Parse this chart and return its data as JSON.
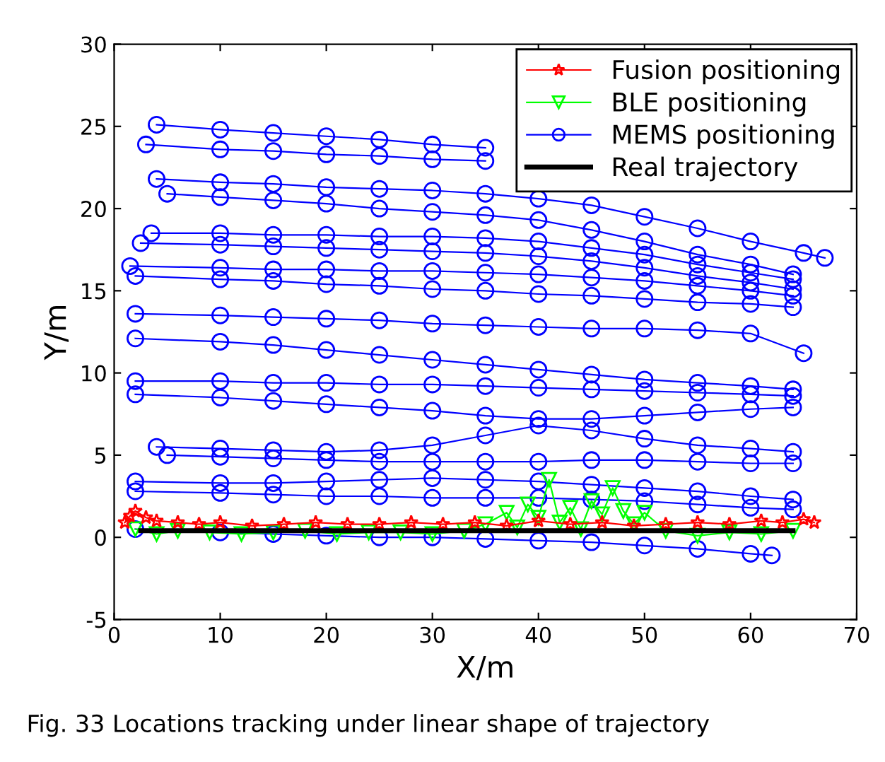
{
  "chart_data": {
    "type": "line",
    "xlabel": "X/m",
    "ylabel": "Y/m",
    "xlim": [
      0,
      70
    ],
    "xticks": [
      0,
      10,
      20,
      30,
      40,
      50,
      60,
      70
    ],
    "ylim": [
      -5,
      30
    ],
    "yticks": [
      -5,
      0,
      5,
      10,
      15,
      20,
      25,
      30
    ],
    "grid": false,
    "legend": "top right",
    "annotations": [
      "Fig. 33 Locations tracking under linear shape of trajectory"
    ],
    "series": [
      {
        "name": "MEMS positioning",
        "color": "#0000ff",
        "marker": "circle",
        "line_style": "solid",
        "x": [
          4,
          10,
          15,
          20,
          25,
          30,
          35,
          null,
          3,
          10,
          15,
          20,
          25,
          30,
          35,
          null,
          4,
          10,
          15,
          20,
          25,
          30,
          35,
          40,
          45,
          50,
          55,
          60,
          65,
          67,
          null,
          5,
          10,
          15,
          20,
          25,
          30,
          35,
          40,
          45,
          50,
          55,
          60,
          64,
          null,
          3.5,
          10,
          15,
          20,
          25,
          30,
          35,
          40,
          45,
          50,
          55,
          60,
          64,
          null,
          2.5,
          10,
          15,
          20,
          25,
          30,
          35,
          40,
          45,
          50,
          55,
          60,
          64,
          null,
          1.5,
          10,
          15,
          20,
          25,
          30,
          35,
          40,
          45,
          50,
          55,
          60,
          64,
          null,
          2,
          10,
          15,
          20,
          25,
          30,
          35,
          40,
          45,
          50,
          55,
          60,
          64,
          null,
          2,
          10,
          15,
          20,
          25,
          30,
          35,
          40,
          45,
          50,
          55,
          60,
          65,
          null,
          2,
          10,
          15,
          20,
          25,
          30,
          35,
          40,
          45,
          50,
          55,
          60,
          64,
          null,
          2,
          10,
          15,
          20,
          25,
          30,
          35,
          40,
          45,
          50,
          55,
          60,
          64,
          null,
          2,
          10,
          15,
          20,
          25,
          30,
          35,
          40,
          45,
          50,
          55,
          60,
          64,
          null,
          4,
          10,
          15,
          20,
          25,
          30,
          35,
          40,
          45,
          50,
          55,
          60,
          64,
          null,
          5,
          10,
          15,
          20,
          25,
          30,
          35,
          40,
          45,
          50,
          55,
          60,
          64,
          null,
          2,
          10,
          15,
          20,
          25,
          30,
          35,
          40,
          45,
          50,
          55,
          60,
          64,
          null,
          2,
          10,
          15,
          20,
          25,
          30,
          35,
          40,
          45,
          50,
          55,
          60,
          64,
          null,
          2,
          10,
          15,
          20,
          25,
          30,
          35,
          40,
          45,
          50,
          55,
          60,
          62
        ],
        "values": [
          25.1,
          24.8,
          24.6,
          24.4,
          24.2,
          23.9,
          23.7,
          null,
          23.9,
          23.6,
          23.5,
          23.3,
          23.2,
          23.0,
          22.9,
          null,
          21.8,
          21.6,
          21.5,
          21.3,
          21.2,
          21.1,
          20.9,
          20.6,
          20.2,
          19.5,
          18.8,
          18.0,
          17.3,
          17.0,
          null,
          20.9,
          20.7,
          20.5,
          20.3,
          20.0,
          19.8,
          19.6,
          19.3,
          18.7,
          18.0,
          17.2,
          16.6,
          16.0,
          null,
          18.5,
          18.5,
          18.4,
          18.4,
          18.3,
          18.3,
          18.2,
          18.0,
          17.6,
          17.2,
          16.6,
          16.1,
          15.7,
          null,
          17.9,
          17.8,
          17.7,
          17.6,
          17.5,
          17.4,
          17.3,
          17.1,
          16.8,
          16.4,
          15.9,
          15.5,
          15.1,
          null,
          16.5,
          16.4,
          16.3,
          16.3,
          16.2,
          16.2,
          16.1,
          16.0,
          15.8,
          15.6,
          15.3,
          15.0,
          14.7,
          null,
          15.9,
          15.7,
          15.6,
          15.4,
          15.3,
          15.1,
          15.0,
          14.8,
          14.7,
          14.5,
          14.3,
          14.2,
          14.0,
          null,
          13.6,
          13.5,
          13.4,
          13.3,
          13.2,
          13.0,
          12.9,
          12.8,
          12.7,
          12.7,
          12.6,
          12.4,
          11.2,
          null,
          12.1,
          11.9,
          11.7,
          11.4,
          11.1,
          10.8,
          10.5,
          10.2,
          9.9,
          9.6,
          9.4,
          9.2,
          9.0,
          null,
          9.5,
          9.5,
          9.4,
          9.4,
          9.3,
          9.3,
          9.2,
          9.1,
          9.0,
          8.9,
          8.8,
          8.7,
          8.6,
          null,
          8.7,
          8.5,
          8.3,
          8.1,
          7.9,
          7.7,
          7.4,
          7.2,
          7.2,
          7.4,
          7.6,
          7.8,
          7.9,
          null,
          5.5,
          5.4,
          5.3,
          5.2,
          5.3,
          5.6,
          6.2,
          6.8,
          6.5,
          6.0,
          5.6,
          5.4,
          5.2,
          null,
          5.0,
          4.9,
          4.8,
          4.7,
          4.6,
          4.6,
          4.6,
          4.6,
          4.7,
          4.7,
          4.6,
          4.5,
          4.5,
          null,
          3.4,
          3.3,
          3.3,
          3.4,
          3.5,
          3.6,
          3.5,
          3.4,
          3.2,
          3.0,
          2.8,
          2.5,
          2.3,
          null,
          2.8,
          2.7,
          2.6,
          2.5,
          2.5,
          2.4,
          2.4,
          2.4,
          2.3,
          2.2,
          2.0,
          1.8,
          1.7,
          null,
          0.5,
          0.3,
          0.2,
          0.1,
          0.0,
          0.0,
          -0.1,
          -0.2,
          -0.3,
          -0.5,
          -0.7,
          -1.0,
          -1.1
        ]
      },
      {
        "name": "BLE positioning",
        "color": "#00ff00",
        "marker": "triangle",
        "line_style": "solid",
        "x": [
          2,
          4,
          6,
          9,
          12,
          15,
          18,
          21,
          24,
          27,
          30,
          33,
          35,
          37,
          38,
          39,
          40,
          41,
          42,
          43,
          44,
          45,
          46,
          47,
          48,
          49,
          50,
          52,
          55,
          58,
          61,
          64
        ],
        "values": [
          0.5,
          0.2,
          0.4,
          0.3,
          0.2,
          0.3,
          0.4,
          0.2,
          0.3,
          0.3,
          0.2,
          0.4,
          0.8,
          1.5,
          0.6,
          2.0,
          1.2,
          3.5,
          0.9,
          1.8,
          0.5,
          2.2,
          1.4,
          3.0,
          1.6,
          0.8,
          1.5,
          0.4,
          0.1,
          0.3,
          0.2,
          0.4
        ]
      },
      {
        "name": "Fusion positioning",
        "color": "#ff0000",
        "marker": "star",
        "line_style": "solid",
        "x": [
          1,
          1.5,
          2,
          3,
          4,
          6,
          8,
          10,
          13,
          16,
          19,
          22,
          25,
          28,
          31,
          34,
          37,
          40,
          43,
          46,
          49,
          52,
          55,
          58,
          61,
          63,
          65,
          66
        ],
        "values": [
          0.9,
          1.3,
          1.6,
          1.2,
          1.0,
          0.9,
          0.8,
          0.9,
          0.7,
          0.8,
          0.9,
          0.8,
          0.8,
          0.9,
          0.8,
          0.9,
          0.7,
          1.0,
          0.8,
          0.9,
          0.7,
          0.8,
          0.9,
          0.8,
          1.0,
          0.9,
          1.1,
          0.9
        ]
      },
      {
        "name": "Real trajectory",
        "color": "#000000",
        "marker": "none",
        "line_style": "solid",
        "x": [
          2.5,
          64
        ],
        "values": [
          0.4,
          0.4
        ]
      }
    ]
  }
}
